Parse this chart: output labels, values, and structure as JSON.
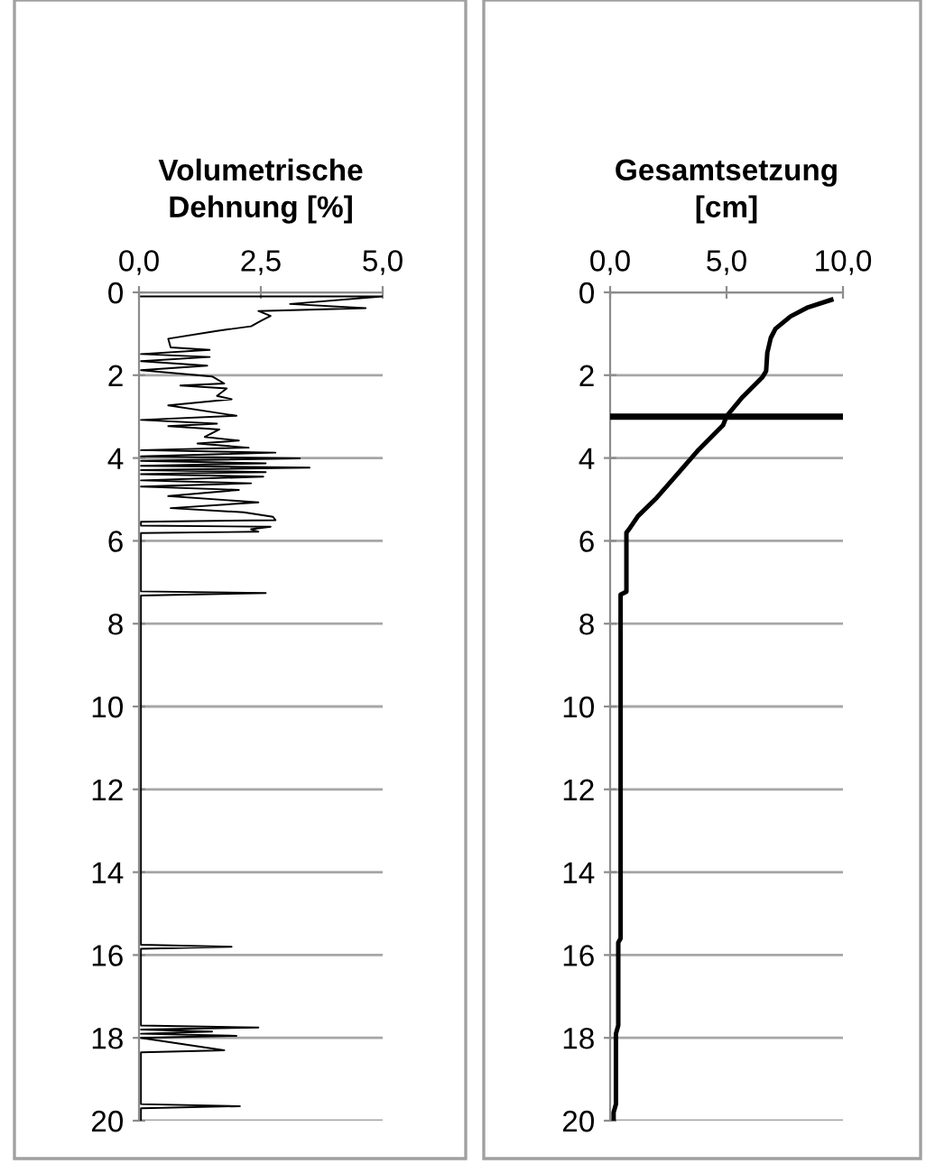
{
  "chart_data": [
    {
      "type": "line",
      "title": "Volumetrische\nDehnung [%]",
      "xlim": [
        0,
        5
      ],
      "xticks": [
        {
          "value": 0,
          "label": "0,0"
        },
        {
          "value": 2.5,
          "label": "2,5"
        },
        {
          "value": 5,
          "label": "5,0"
        }
      ],
      "ylim": [
        20,
        0
      ],
      "yticks": [
        0,
        2,
        4,
        6,
        8,
        10,
        12,
        14,
        16,
        18,
        20
      ],
      "grid": "y",
      "legend": false,
      "marker": "none",
      "line_style": "solid",
      "series": [
        {
          "color": "#000000",
          "x": [
            0.04,
            5.0,
            3.1,
            4.65,
            2.45,
            2.7,
            2.5,
            2.3,
            1.6,
            0.6,
            0.65,
            1.45,
            0.04,
            1.45,
            0.04,
            1.4,
            0.04,
            1.5,
            1.75,
            0.85,
            1.8,
            1.6,
            1.9,
            0.6,
            2.0,
            0.04,
            1.6,
            0.6,
            1.65,
            1.35,
            2.05,
            1.2,
            2.25,
            0.04,
            2.8,
            0.04,
            3.3,
            0.04,
            2.6,
            0.04,
            3.5,
            0.04,
            2.6,
            0.04,
            2.55,
            0.04,
            2.3,
            0.04,
            2.05,
            0.6,
            2.45,
            0.65,
            2.15,
            2.75,
            2.8,
            0.04,
            0.04,
            2.7,
            2.3,
            2.45,
            0.04,
            0.04,
            2.6,
            0.04,
            0.04,
            1.9,
            0.04,
            0.04,
            2.45,
            0.04,
            1.5,
            0.04,
            2.0,
            0.04,
            1.75,
            0.04,
            0.04,
            2.07,
            0.04,
            0.04
          ],
          "values": [
            0.1,
            0.1,
            0.28,
            0.38,
            0.45,
            0.57,
            0.69,
            0.82,
            0.93,
            1.12,
            1.33,
            1.39,
            1.49,
            1.56,
            1.66,
            1.77,
            1.88,
            2.03,
            2.2,
            2.25,
            2.32,
            2.5,
            2.58,
            2.73,
            2.98,
            3.08,
            3.17,
            3.23,
            3.31,
            3.49,
            3.58,
            3.65,
            3.75,
            3.81,
            3.87,
            3.96,
            4.01,
            4.07,
            4.13,
            4.19,
            4.23,
            4.29,
            4.34,
            4.39,
            4.45,
            4.54,
            4.61,
            4.69,
            4.77,
            4.92,
            5.07,
            5.21,
            5.31,
            5.42,
            5.5,
            5.54,
            5.63,
            5.66,
            5.72,
            5.78,
            5.81,
            7.22,
            7.26,
            7.32,
            15.75,
            15.8,
            15.85,
            17.7,
            17.75,
            17.8,
            17.85,
            17.9,
            17.95,
            18.0,
            18.3,
            18.35,
            19.6,
            19.65,
            19.7,
            20.0
          ]
        }
      ]
    },
    {
      "type": "line",
      "title": "Gesamtsetzung\n[cm]",
      "xlim": [
        0,
        10
      ],
      "xticks": [
        {
          "value": 0,
          "label": "0,0"
        },
        {
          "value": 5,
          "label": "5,0"
        },
        {
          "value": 10,
          "label": "10,0"
        }
      ],
      "ylim": [
        20,
        0
      ],
      "yticks": [
        0,
        2,
        4,
        6,
        8,
        10,
        12,
        14,
        16,
        18,
        20
      ],
      "grid": "y",
      "legend": false,
      "marker": "none",
      "line_style": "solid",
      "ref_lines": [
        {
          "axis": "y",
          "value": 3,
          "color": "#000000"
        }
      ],
      "series": [
        {
          "color": "#000000",
          "x": [
            9.5,
            8.5,
            7.75,
            7.1,
            6.9,
            6.75,
            6.7,
            6.55,
            5.65,
            5.0,
            4.85,
            3.8,
            2.9,
            2.0,
            1.2,
            0.85,
            0.7,
            0.7,
            0.45,
            0.45,
            0.35,
            0.35,
            0.25,
            0.25,
            0.15,
            0.15
          ],
          "values": [
            0.18,
            0.36,
            0.58,
            0.88,
            1.1,
            1.46,
            1.9,
            2.04,
            2.55,
            2.99,
            3.21,
            3.8,
            4.38,
            4.96,
            5.4,
            5.69,
            5.8,
            7.23,
            7.3,
            15.6,
            15.7,
            17.7,
            17.9,
            19.6,
            19.8,
            20.0
          ]
        }
      ]
    }
  ]
}
